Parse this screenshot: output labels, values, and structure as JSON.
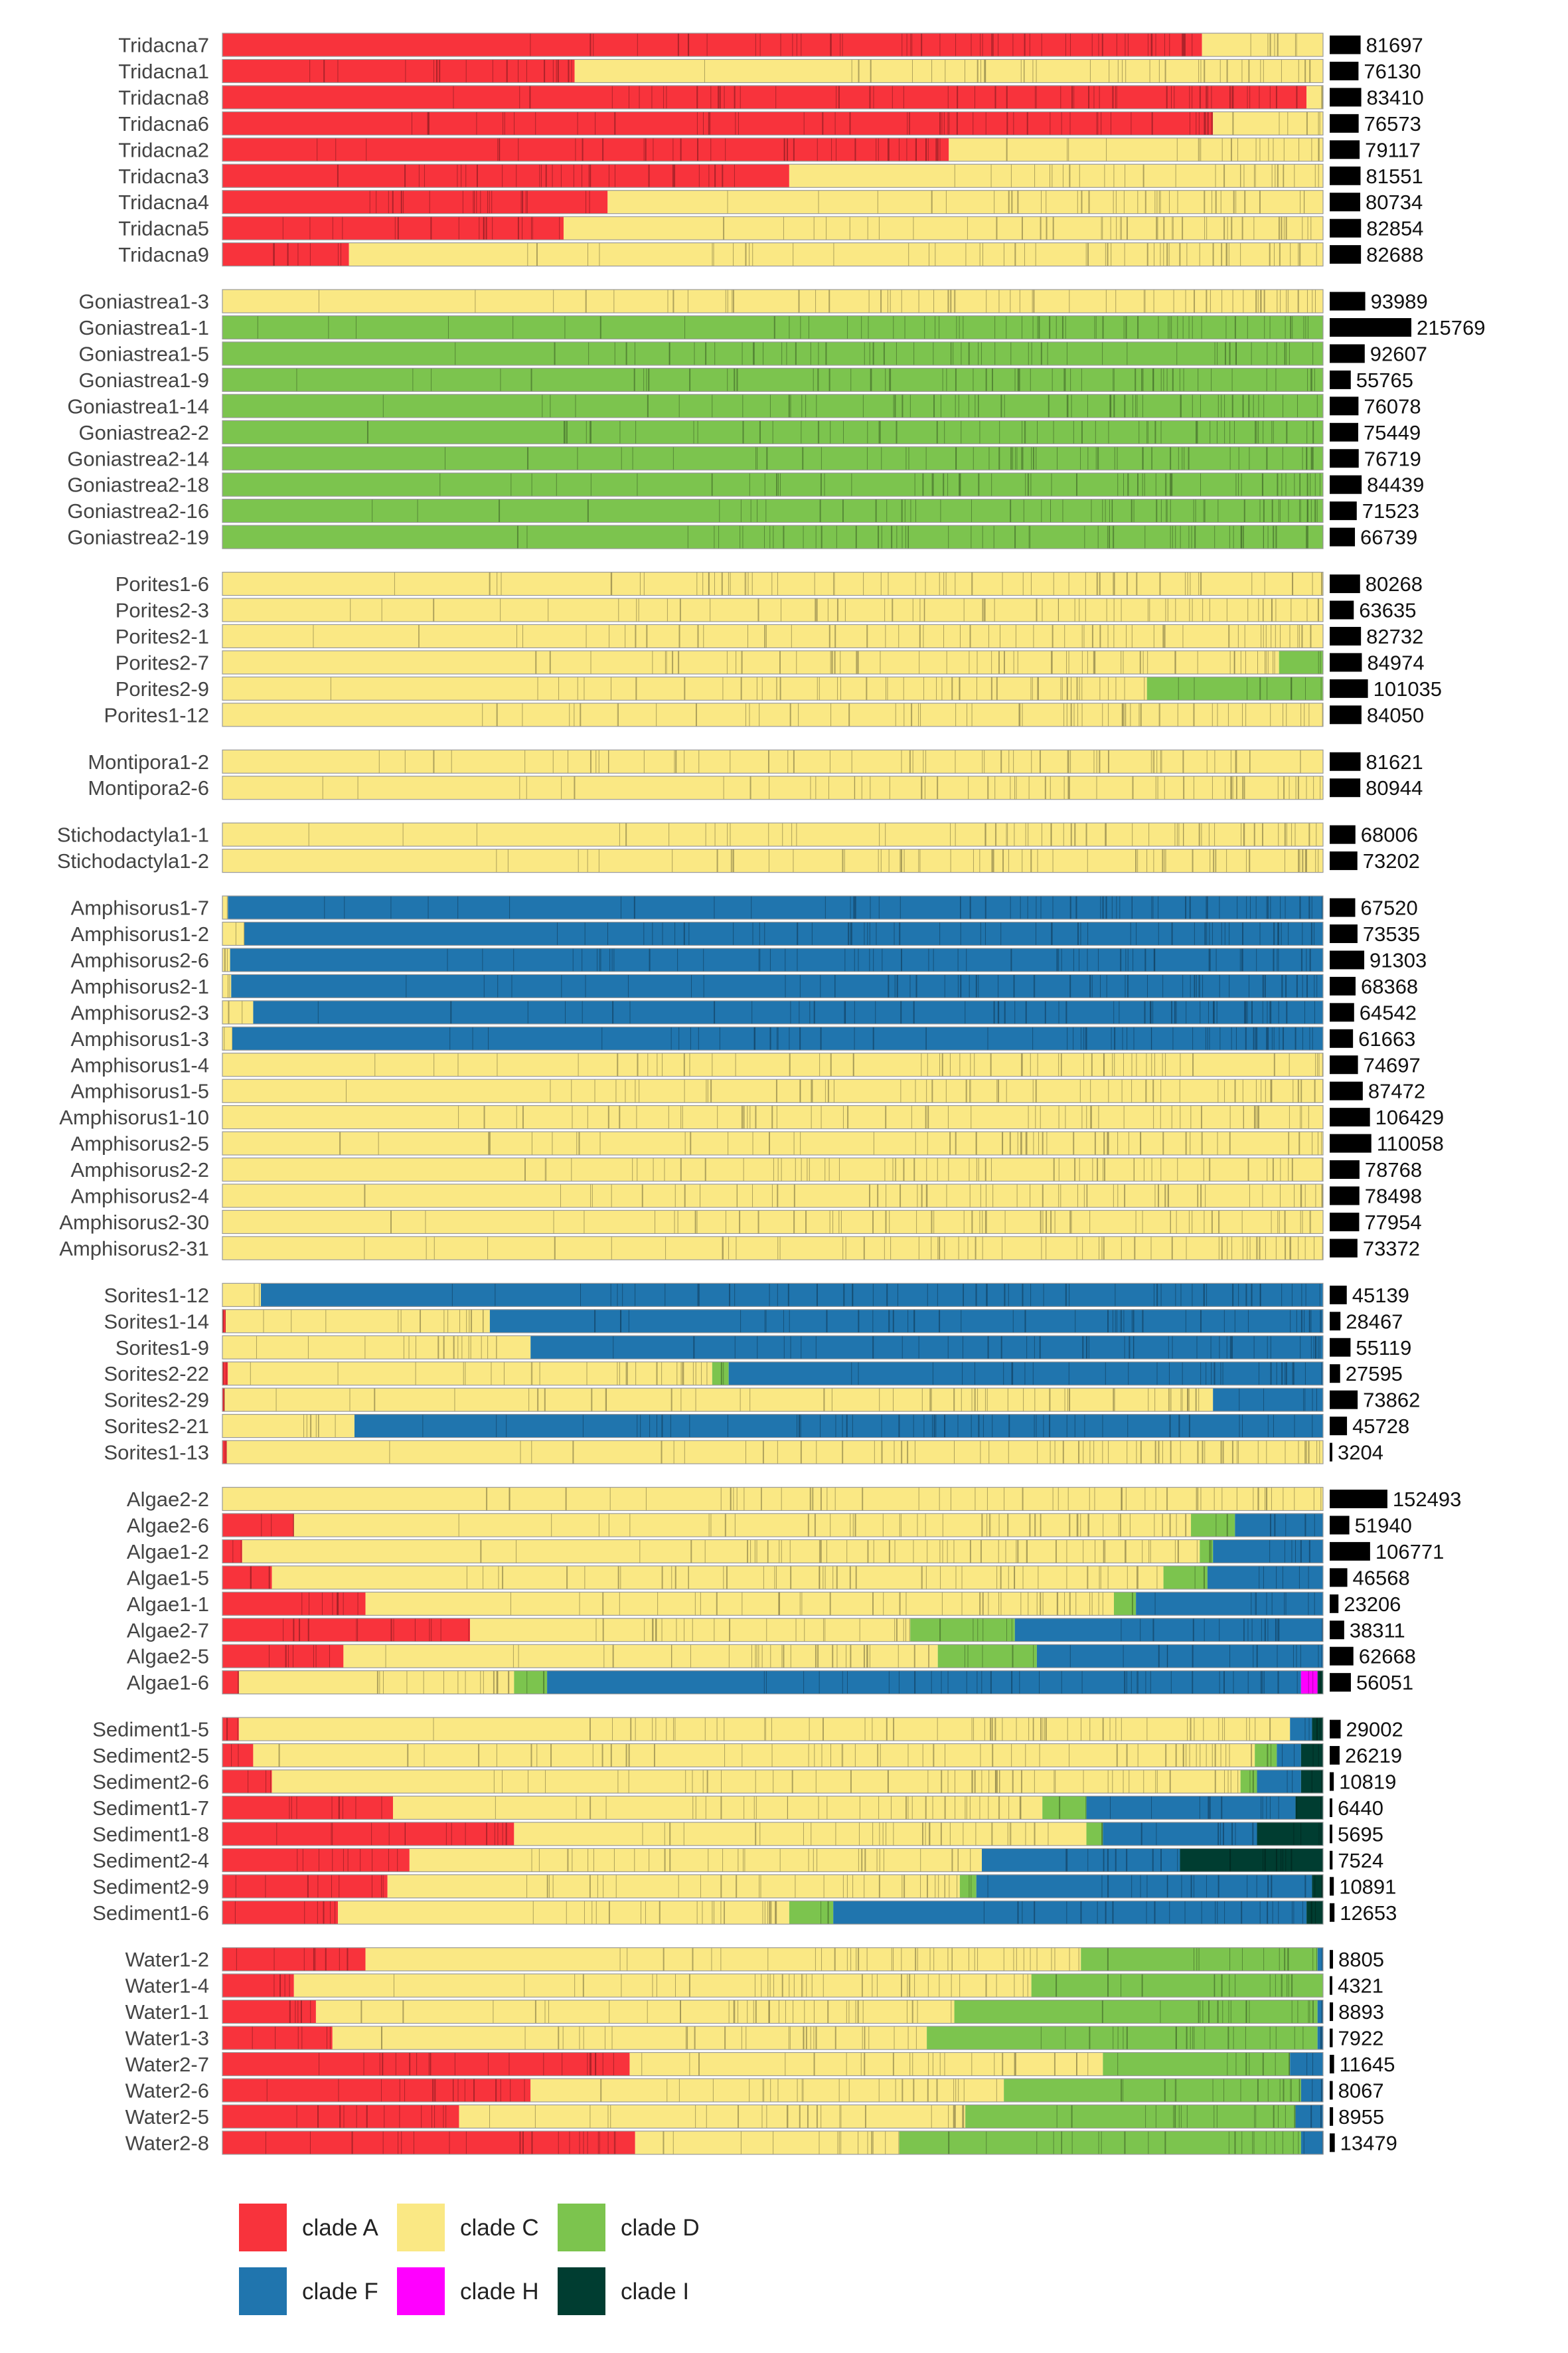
{
  "chart_data": {
    "type": "bar",
    "orientation": "horizontal-stacked-relative",
    "title": "",
    "xlabel": "",
    "ylabel": "",
    "xlim": [
      0,
      1
    ],
    "grid": false,
    "legend_placement": "bottom-left",
    "colors": {
      "clade A": "#F8333C",
      "clade C": "#FAE884",
      "clade D": "#7CC44E",
      "clade F": "#2075AE",
      "clade H": "#FF00FF",
      "clade I": "#003D31"
    },
    "legend": [
      "clade A",
      "clade C",
      "clade D",
      "clade F",
      "clade H",
      "clade I"
    ],
    "series_order": [
      "clade A",
      "clade C",
      "clade D",
      "clade F",
      "clade H",
      "clade I"
    ],
    "groups": [
      {
        "samples": [
          {
            "name": "Tridacna7",
            "count": 81697,
            "fractions": [
              0.89,
              0.11,
              0,
              0,
              0,
              0
            ]
          },
          {
            "name": "Tridacna1",
            "count": 76130,
            "fractions": [
              0.32,
              0.68,
              0,
              0,
              0,
              0
            ]
          },
          {
            "name": "Tridacna8",
            "count": 83410,
            "fractions": [
              0.985,
              0.015,
              0,
              0,
              0,
              0
            ]
          },
          {
            "name": "Tridacna6",
            "count": 76573,
            "fractions": [
              0.9,
              0.1,
              0,
              0,
              0,
              0
            ]
          },
          {
            "name": "Tridacna2",
            "count": 79117,
            "fractions": [
              0.66,
              0.34,
              0,
              0,
              0,
              0
            ]
          },
          {
            "name": "Tridacna3",
            "count": 81551,
            "fractions": [
              0.515,
              0.485,
              0,
              0,
              0,
              0
            ]
          },
          {
            "name": "Tridacna4",
            "count": 80734,
            "fractions": [
              0.35,
              0.65,
              0,
              0,
              0,
              0
            ]
          },
          {
            "name": "Tridacna5",
            "count": 82854,
            "fractions": [
              0.31,
              0.69,
              0,
              0,
              0,
              0
            ]
          },
          {
            "name": "Tridacna9",
            "count": 82688,
            "fractions": [
              0.115,
              0.885,
              0,
              0,
              0,
              0
            ]
          }
        ]
      },
      {
        "samples": [
          {
            "name": "Goniastrea1-3",
            "count": 93989,
            "fractions": [
              0,
              1,
              0,
              0,
              0,
              0
            ]
          },
          {
            "name": "Goniastrea1-1",
            "count": 215769,
            "fractions": [
              0,
              0,
              1,
              0,
              0,
              0
            ]
          },
          {
            "name": "Goniastrea1-5",
            "count": 92607,
            "fractions": [
              0,
              0,
              1,
              0,
              0,
              0
            ]
          },
          {
            "name": "Goniastrea1-9",
            "count": 55765,
            "fractions": [
              0,
              0,
              1,
              0,
              0,
              0
            ]
          },
          {
            "name": "Goniastrea1-14",
            "count": 76078,
            "fractions": [
              0,
              0,
              1,
              0,
              0,
              0
            ]
          },
          {
            "name": "Goniastrea2-2",
            "count": 75449,
            "fractions": [
              0,
              0,
              1,
              0,
              0,
              0
            ]
          },
          {
            "name": "Goniastrea2-14",
            "count": 76719,
            "fractions": [
              0,
              0,
              1,
              0,
              0,
              0
            ]
          },
          {
            "name": "Goniastrea2-18",
            "count": 84439,
            "fractions": [
              0,
              0,
              1,
              0,
              0,
              0
            ]
          },
          {
            "name": "Goniastrea2-16",
            "count": 71523,
            "fractions": [
              0,
              0,
              1,
              0,
              0,
              0
            ]
          },
          {
            "name": "Goniastrea2-19",
            "count": 66739,
            "fractions": [
              0,
              0,
              1,
              0,
              0,
              0
            ]
          }
        ]
      },
      {
        "samples": [
          {
            "name": "Porites1-6",
            "count": 80268,
            "fractions": [
              0,
              1,
              0,
              0,
              0,
              0
            ]
          },
          {
            "name": "Porites2-3",
            "count": 63635,
            "fractions": [
              0,
              1,
              0,
              0,
              0,
              0
            ]
          },
          {
            "name": "Porites2-1",
            "count": 82732,
            "fractions": [
              0,
              1,
              0,
              0,
              0,
              0
            ]
          },
          {
            "name": "Porites2-7",
            "count": 84974,
            "fractions": [
              0,
              0.96,
              0.04,
              0,
              0,
              0
            ]
          },
          {
            "name": "Porites2-9",
            "count": 101035,
            "fractions": [
              0,
              0.84,
              0.16,
              0,
              0,
              0
            ]
          },
          {
            "name": "Porites1-12",
            "count": 84050,
            "fractions": [
              0,
              1,
              0,
              0,
              0,
              0
            ]
          }
        ]
      },
      {
        "samples": [
          {
            "name": "Montipora1-2",
            "count": 81621,
            "fractions": [
              0,
              1,
              0,
              0,
              0,
              0
            ]
          },
          {
            "name": "Montipora2-6",
            "count": 80944,
            "fractions": [
              0,
              1,
              0,
              0,
              0,
              0
            ]
          }
        ]
      },
      {
        "samples": [
          {
            "name": "Stichodactyla1-1",
            "count": 68006,
            "fractions": [
              0,
              1,
              0,
              0,
              0,
              0
            ]
          },
          {
            "name": "Stichodactyla1-2",
            "count": 73202,
            "fractions": [
              0,
              1,
              0,
              0,
              0,
              0
            ]
          }
        ]
      },
      {
        "samples": [
          {
            "name": "Amphisorus1-7",
            "count": 67520,
            "fractions": [
              0,
              0.005,
              0,
              0.995,
              0,
              0
            ]
          },
          {
            "name": "Amphisorus1-2",
            "count": 73535,
            "fractions": [
              0,
              0.02,
              0,
              0.98,
              0,
              0
            ]
          },
          {
            "name": "Amphisorus2-6",
            "count": 91303,
            "fractions": [
              0,
              0.007,
              0,
              0.993,
              0,
              0
            ]
          },
          {
            "name": "Amphisorus2-1",
            "count": 68368,
            "fractions": [
              0,
              0.008,
              0,
              0.992,
              0,
              0
            ]
          },
          {
            "name": "Amphisorus2-3",
            "count": 64542,
            "fractions": [
              0,
              0.028,
              0,
              0.972,
              0,
              0
            ]
          },
          {
            "name": "Amphisorus1-3",
            "count": 61663,
            "fractions": [
              0,
              0.009,
              0,
              0.991,
              0,
              0
            ]
          },
          {
            "name": "Amphisorus1-4",
            "count": 74697,
            "fractions": [
              0,
              1,
              0,
              0,
              0,
              0
            ]
          },
          {
            "name": "Amphisorus1-5",
            "count": 87472,
            "fractions": [
              0,
              1,
              0,
              0,
              0,
              0
            ]
          },
          {
            "name": "Amphisorus1-10",
            "count": 106429,
            "fractions": [
              0,
              1,
              0,
              0,
              0,
              0
            ]
          },
          {
            "name": "Amphisorus2-5",
            "count": 110058,
            "fractions": [
              0,
              1,
              0,
              0,
              0,
              0
            ]
          },
          {
            "name": "Amphisorus2-2",
            "count": 78768,
            "fractions": [
              0,
              1,
              0,
              0,
              0,
              0
            ]
          },
          {
            "name": "Amphisorus2-4",
            "count": 78498,
            "fractions": [
              0,
              1,
              0,
              0,
              0,
              0
            ]
          },
          {
            "name": "Amphisorus2-30",
            "count": 77954,
            "fractions": [
              0,
              1,
              0,
              0,
              0,
              0
            ]
          },
          {
            "name": "Amphisorus2-31",
            "count": 73372,
            "fractions": [
              0,
              1,
              0,
              0,
              0,
              0
            ]
          }
        ]
      },
      {
        "samples": [
          {
            "name": "Sorites1-12",
            "count": 45139,
            "fractions": [
              0,
              0.035,
              0,
              0.965,
              0,
              0
            ]
          },
          {
            "name": "Sorites1-14",
            "count": 28467,
            "fractions": [
              0.003,
              0.24,
              0,
              0.757,
              0,
              0
            ]
          },
          {
            "name": "Sorites1-9",
            "count": 55119,
            "fractions": [
              0,
              0.28,
              0,
              0.72,
              0,
              0
            ]
          },
          {
            "name": "Sorites2-22",
            "count": 27595,
            "fractions": [
              0.005,
              0.44,
              0.015,
              0.54,
              0,
              0
            ]
          },
          {
            "name": "Sorites2-29",
            "count": 73862,
            "fractions": [
              0.002,
              0.898,
              0,
              0.1,
              0,
              0
            ]
          },
          {
            "name": "Sorites2-21",
            "count": 45728,
            "fractions": [
              0,
              0.12,
              0,
              0.88,
              0,
              0
            ]
          },
          {
            "name": "Sorites1-13",
            "count": 3204,
            "fractions": [
              0.004,
              0.996,
              0,
              0,
              0,
              0
            ]
          }
        ]
      },
      {
        "samples": [
          {
            "name": "Algae2-2",
            "count": 152493,
            "fractions": [
              0,
              1,
              0,
              0,
              0,
              0
            ]
          },
          {
            "name": "Algae2-6",
            "count": 51940,
            "fractions": [
              0.065,
              0.815,
              0.04,
              0.08,
              0,
              0
            ]
          },
          {
            "name": "Algae1-2",
            "count": 106771,
            "fractions": [
              0.018,
              0.87,
              0.012,
              0.1,
              0,
              0
            ]
          },
          {
            "name": "Algae1-5",
            "count": 46568,
            "fractions": [
              0.045,
              0.81,
              0.04,
              0.105,
              0,
              0
            ]
          },
          {
            "name": "Algae1-1",
            "count": 23206,
            "fractions": [
              0.13,
              0.68,
              0.02,
              0.17,
              0,
              0
            ]
          },
          {
            "name": "Algae2-7",
            "count": 38311,
            "fractions": [
              0.225,
              0.4,
              0.095,
              0.28,
              0,
              0
            ]
          },
          {
            "name": "Algae2-5",
            "count": 62668,
            "fractions": [
              0.11,
              0.54,
              0.09,
              0.26,
              0,
              0
            ]
          },
          {
            "name": "Algae1-6",
            "count": 56051,
            "fractions": [
              0.015,
              0.25,
              0.03,
              0.685,
              0.015,
              0.005
            ]
          }
        ]
      },
      {
        "samples": [
          {
            "name": "Sediment1-5",
            "count": 29002,
            "fractions": [
              0.015,
              0.955,
              0,
              0.02,
              0,
              0.01
            ]
          },
          {
            "name": "Sediment2-5",
            "count": 26219,
            "fractions": [
              0.028,
              0.91,
              0.02,
              0.022,
              0,
              0.02
            ]
          },
          {
            "name": "Sediment2-6",
            "count": 10819,
            "fractions": [
              0.045,
              0.88,
              0.015,
              0.04,
              0,
              0.02
            ]
          },
          {
            "name": "Sediment1-7",
            "count": 6440,
            "fractions": [
              0.155,
              0.59,
              0.04,
              0.19,
              0,
              0.025
            ]
          },
          {
            "name": "Sediment1-8",
            "count": 5695,
            "fractions": [
              0.265,
              0.52,
              0.015,
              0.14,
              0,
              0.06
            ]
          },
          {
            "name": "Sediment2-4",
            "count": 7524,
            "fractions": [
              0.17,
              0.52,
              0,
              0.18,
              0,
              0.13
            ]
          },
          {
            "name": "Sediment2-9",
            "count": 10891,
            "fractions": [
              0.15,
              0.52,
              0.015,
              0.305,
              0,
              0.01
            ]
          },
          {
            "name": "Sediment1-6",
            "count": 12653,
            "fractions": [
              0.105,
              0.41,
              0.04,
              0.43,
              0,
              0.015
            ]
          }
        ]
      },
      {
        "samples": [
          {
            "name": "Water1-2",
            "count": 8805,
            "fractions": [
              0.13,
              0.65,
              0.215,
              0.005,
              0,
              0
            ]
          },
          {
            "name": "Water1-4",
            "count": 4321,
            "fractions": [
              0.065,
              0.67,
              0.265,
              0,
              0,
              0
            ]
          },
          {
            "name": "Water1-1",
            "count": 8893,
            "fractions": [
              0.085,
              0.58,
              0.33,
              0.005,
              0,
              0
            ]
          },
          {
            "name": "Water1-3",
            "count": 7922,
            "fractions": [
              0.1,
              0.54,
              0.355,
              0.005,
              0,
              0
            ]
          },
          {
            "name": "Water2-7",
            "count": 11645,
            "fractions": [
              0.37,
              0.43,
              0.17,
              0.03,
              0,
              0
            ]
          },
          {
            "name": "Water2-6",
            "count": 8067,
            "fractions": [
              0.28,
              0.43,
              0.27,
              0.02,
              0,
              0
            ]
          },
          {
            "name": "Water2-5",
            "count": 8955,
            "fractions": [
              0.215,
              0.46,
              0.3,
              0.025,
              0,
              0
            ]
          },
          {
            "name": "Water2-8",
            "count": 13479,
            "fractions": [
              0.375,
              0.24,
              0.365,
              0.02,
              0,
              0
            ]
          }
        ]
      }
    ]
  }
}
